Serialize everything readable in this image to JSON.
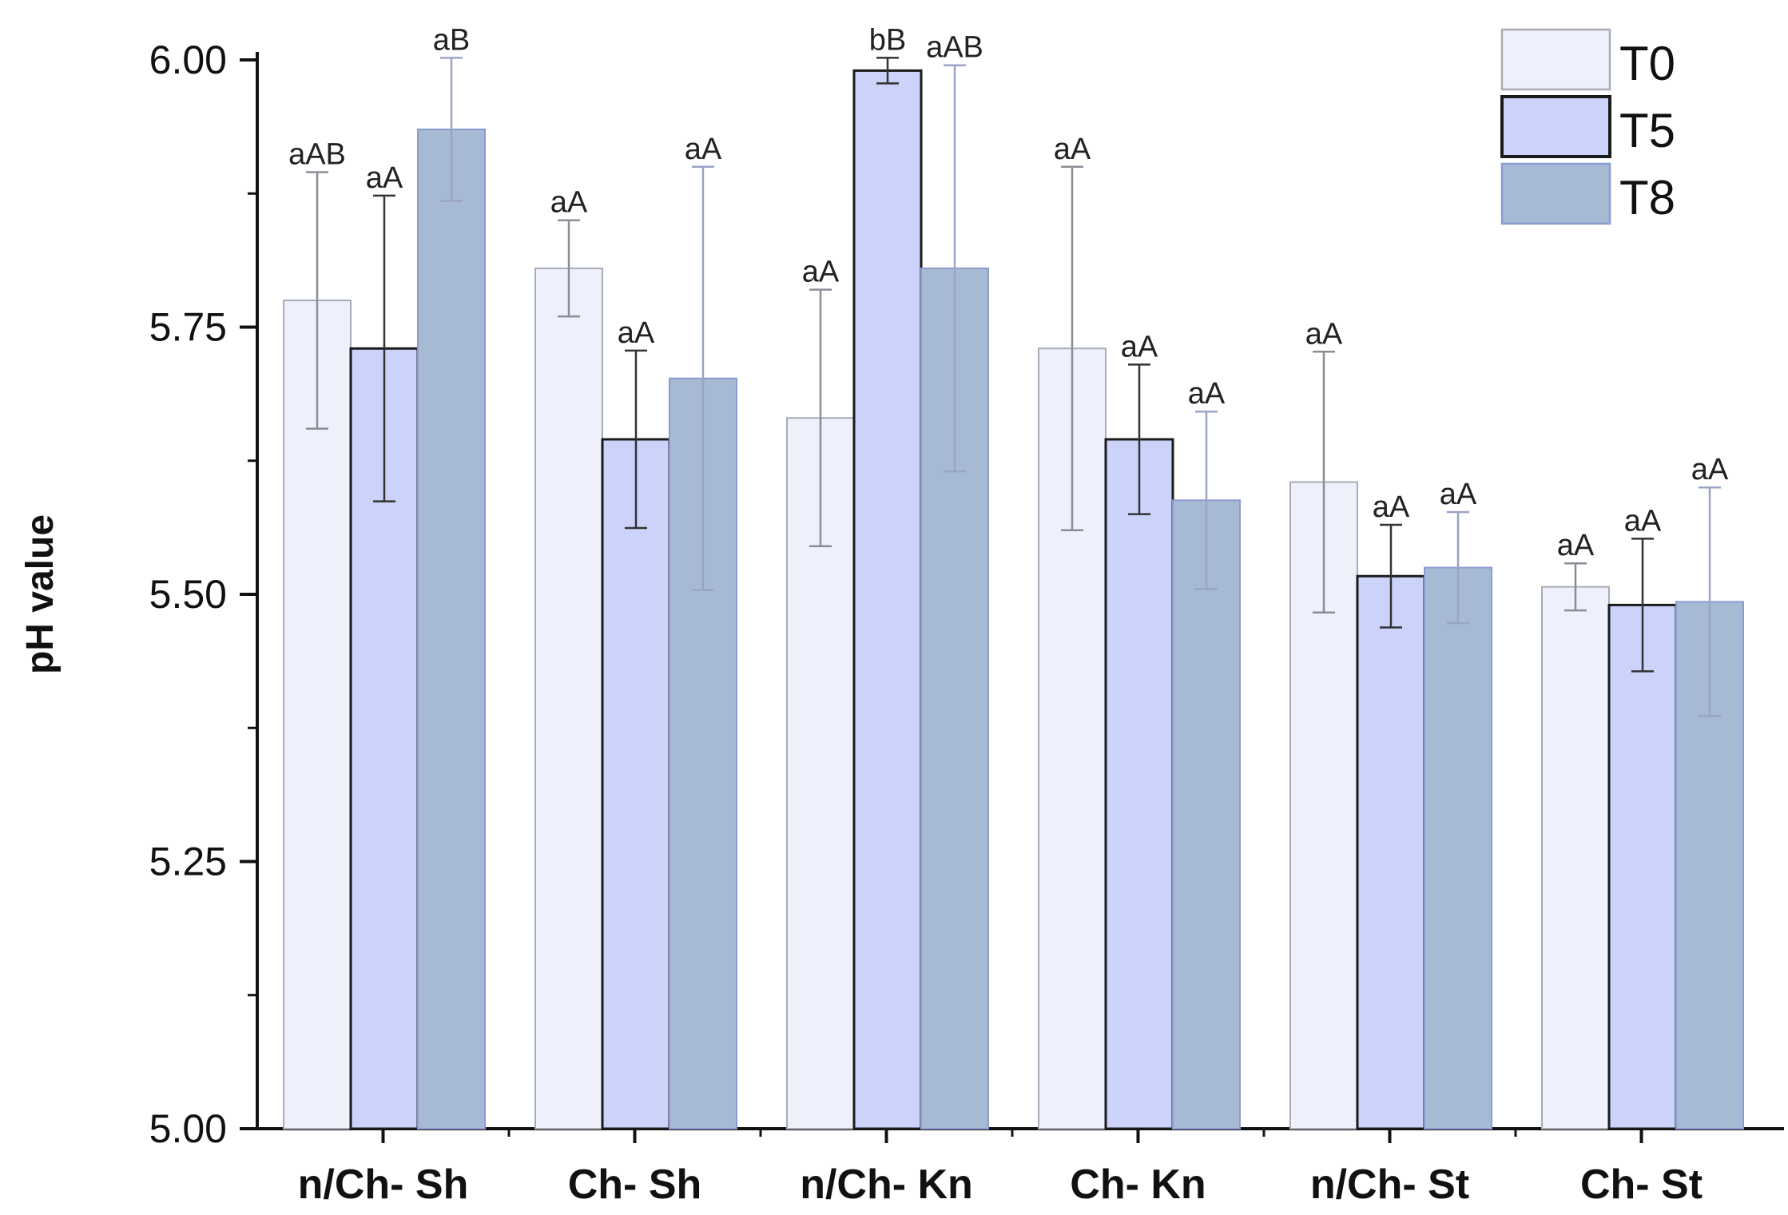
{
  "chart_data": {
    "type": "bar",
    "title": "",
    "xlabel": "",
    "ylabel": "pH value",
    "ylim": [
      5.0,
      6.0
    ],
    "yticks": [
      "5.00",
      "5.25",
      "5.50",
      "5.75",
      "6.00"
    ],
    "categories": [
      "n/Ch- Sh",
      "Ch- Sh",
      "n/Ch- Kn",
      "Ch- Kn",
      "n/Ch- St",
      "Ch- St"
    ],
    "legend_position": "top-right",
    "series": [
      {
        "name": "T0",
        "color": "#eef0fb",
        "edge": "#a9acb8",
        "values": [
          5.775,
          5.805,
          5.665,
          5.73,
          5.605,
          5.507
        ],
        "errors": [
          0.12,
          0.045,
          0.12,
          0.17,
          0.122,
          0.022
        ],
        "annotations": [
          "aAB",
          "aA",
          "aA",
          "aA",
          "aA",
          "aA"
        ]
      },
      {
        "name": "T5",
        "color": "#ccd3fb",
        "edge": "#1a1a1a",
        "values": [
          5.73,
          5.645,
          5.99,
          5.645,
          5.517,
          5.49
        ],
        "errors": [
          0.143,
          0.083,
          0.012,
          0.07,
          0.048,
          0.062
        ],
        "annotations": [
          "aA",
          "aA",
          "bB",
          "aA",
          "aA",
          "aA"
        ]
      },
      {
        "name": "T8",
        "color": "#a7bad4",
        "edge": "#8c9bd0",
        "values": [
          5.935,
          5.702,
          5.805,
          5.588,
          5.525,
          5.493
        ],
        "errors": [
          0.067,
          0.198,
          0.19,
          0.083,
          0.052,
          0.107
        ],
        "annotations": [
          "aB",
          "aA",
          "aAB",
          "aA",
          "aA",
          "aA"
        ]
      }
    ]
  }
}
